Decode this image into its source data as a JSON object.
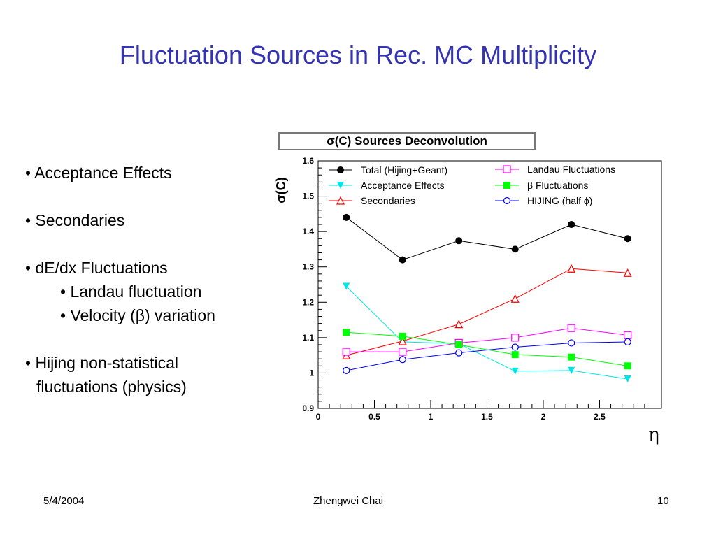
{
  "slide": {
    "title": "Fluctuation Sources in Rec. MC Multiplicity",
    "bullets": {
      "b1": "• Acceptance Effects",
      "b2": "• Secondaries",
      "b3": "• dE/dx Fluctuations",
      "b3a": "• Landau fluctuation",
      "b3b": "• Velocity (β) variation",
      "b4_line1": "• Hijing non-statistical",
      "b4_line2": "fluctuations (physics)"
    },
    "footer": {
      "date": "5/4/2004",
      "author": "Zhengwei Chai",
      "page": "10"
    },
    "colors": {
      "title": "#3333b3"
    }
  },
  "chart_data": {
    "type": "line",
    "title": "σ(C) Sources Deconvolution",
    "xlabel": "η",
    "ylabel": "σ(C)",
    "xlim": [
      0,
      3.05
    ],
    "ylim": [
      0.9,
      1.6
    ],
    "xticks": [
      "0",
      "0.5",
      "1",
      "1.5",
      "2",
      "2.5"
    ],
    "yticks": [
      "0.9",
      "1",
      "1.1",
      "1.2",
      "1.3",
      "1.4",
      "1.5",
      "1.6"
    ],
    "x": [
      0.25,
      0.75,
      1.25,
      1.75,
      2.25,
      2.75
    ],
    "legend_position": "top",
    "series": [
      {
        "name": "Total (Hijing+Geant)",
        "color": "#000000",
        "marker": "filled-circle",
        "values": [
          1.44,
          1.32,
          1.374,
          1.35,
          1.42,
          1.38
        ]
      },
      {
        "name": "Acceptance Effects",
        "color": "#00e5e5",
        "marker": "filled-triangle-down",
        "values": [
          1.245,
          1.088,
          1.083,
          1.005,
          1.007,
          0.983
        ]
      },
      {
        "name": "Secondaries",
        "color": "#ff0000",
        "marker": "open-triangle-up",
        "values": [
          1.05,
          1.09,
          1.138,
          1.21,
          1.295,
          1.283
        ]
      },
      {
        "name": "Landau Fluctuations",
        "color": "#ff00ff",
        "marker": "open-square",
        "values": [
          1.06,
          1.06,
          1.085,
          1.1,
          1.127,
          1.107
        ]
      },
      {
        "name": "β Fluctuations",
        "color": "#00ff00",
        "marker": "filled-square",
        "values": [
          1.115,
          1.104,
          1.08,
          1.052,
          1.045,
          1.02
        ]
      },
      {
        "name": "HIJING (half ϕ)",
        "color": "#0000ff",
        "marker": "open-circle",
        "values": [
          1.007,
          1.038,
          1.057,
          1.073,
          1.085,
          1.088
        ]
      }
    ]
  }
}
